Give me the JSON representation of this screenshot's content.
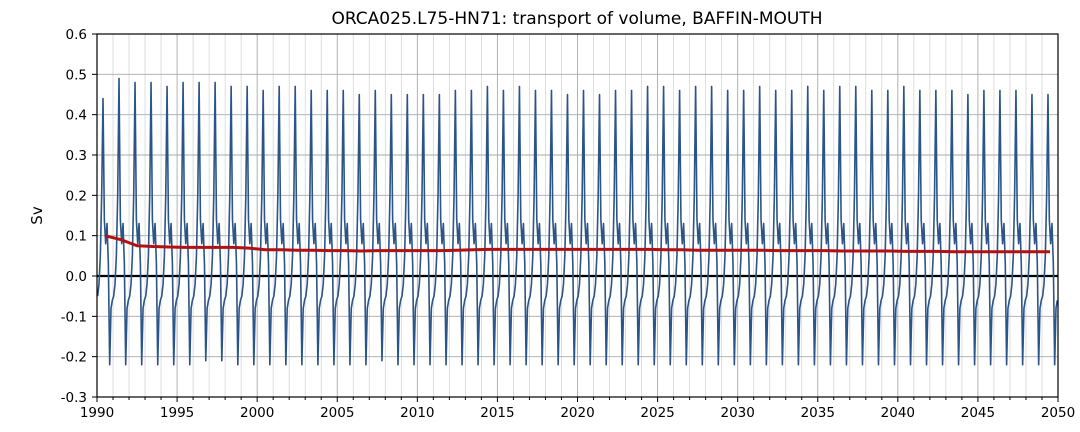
{
  "chart_data": {
    "type": "line",
    "title": "ORCA025.L75-HN71: transport of volume, BAFFIN-MOUTH",
    "xlabel": "",
    "ylabel": "Sv",
    "xlim": [
      1990,
      2050
    ],
    "ylim": [
      -0.3,
      0.6
    ],
    "x_ticks": [
      1990,
      1995,
      2000,
      2005,
      2010,
      2015,
      2020,
      2025,
      2030,
      2035,
      2040,
      2045,
      2050
    ],
    "x_tick_labels": [
      "1990",
      "1995",
      "2000",
      "2005",
      "2010",
      "2015",
      "2020",
      "2025",
      "2030",
      "2035",
      "2040",
      "2045",
      "2050"
    ],
    "y_ticks": [
      -0.3,
      -0.2,
      -0.1,
      0.0,
      0.1,
      0.2,
      0.3,
      0.4,
      0.5,
      0.6
    ],
    "y_tick_labels": [
      "-0.3",
      "-0.2",
      "-0.1",
      "0.0",
      "0.1",
      "0.2",
      "0.3",
      "0.4",
      "0.5",
      "0.6"
    ],
    "grid": true,
    "minor_x_grid_step_years": 1,
    "zero_line": true,
    "colors": {
      "monthly": "#2b5489",
      "annual_mean": "#b01111",
      "zero_line": "#000000",
      "grid_major": "#aaaaaa",
      "grid_minor": "#d6d6d6"
    },
    "monthly_series": {
      "description_of_cycle": "seasonal cycle repeated every year with slight amplitude variation",
      "monthly_climatology": [
        -0.05,
        -0.02,
        0.05,
        0.2,
        0.45,
        0.14,
        0.08,
        0.13,
        0.03,
        -0.22,
        -0.08,
        -0.06
      ],
      "annual_peak": [
        0.44,
        0.49,
        0.48,
        0.48,
        0.47,
        0.48,
        0.48,
        0.48,
        0.47,
        0.47,
        0.46,
        0.47,
        0.47,
        0.46,
        0.46,
        0.46,
        0.45,
        0.46,
        0.45,
        0.45,
        0.45,
        0.45,
        0.46,
        0.46,
        0.47,
        0.46,
        0.47,
        0.46,
        0.46,
        0.45,
        0.46,
        0.45,
        0.46,
        0.46,
        0.47,
        0.47,
        0.46,
        0.47,
        0.47,
        0.46,
        0.46,
        0.47,
        0.46,
        0.46,
        0.47,
        0.46,
        0.47,
        0.47,
        0.46,
        0.46,
        0.47,
        0.46,
        0.46,
        0.46,
        0.45,
        0.46,
        0.46,
        0.46,
        0.45,
        0.45
      ],
      "annual_trough": [
        -0.22,
        -0.22,
        -0.22,
        -0.22,
        -0.22,
        -0.22,
        -0.21,
        -0.21,
        -0.22,
        -0.22,
        -0.22,
        -0.22,
        -0.22,
        -0.22,
        -0.22,
        -0.22,
        -0.22,
        -0.21,
        -0.22,
        -0.22,
        -0.22,
        -0.22,
        -0.22,
        -0.22,
        -0.22,
        -0.22,
        -0.22,
        -0.22,
        -0.22,
        -0.22,
        -0.22,
        -0.22,
        -0.22,
        -0.22,
        -0.22,
        -0.22,
        -0.22,
        -0.22,
        -0.22,
        -0.22,
        -0.22,
        -0.22,
        -0.22,
        -0.22,
        -0.22,
        -0.22,
        -0.22,
        -0.22,
        -0.22,
        -0.22,
        -0.22,
        -0.22,
        -0.22,
        -0.22,
        -0.22,
        -0.22,
        -0.22,
        -0.22,
        -0.22,
        -0.22
      ]
    },
    "annual_mean_series": {
      "x": [
        1990.5,
        1991.5,
        1992.5,
        1993.5,
        1994.5,
        1995.5,
        1996.5,
        1997.5,
        1998.5,
        1999.5,
        2000.5,
        2001.5,
        2002.5,
        2003.5,
        2004.5,
        2005.5,
        2006.5,
        2007.5,
        2008.5,
        2009.5,
        2010.5,
        2011.5,
        2012.5,
        2013.5,
        2014.5,
        2015.5,
        2016.5,
        2017.5,
        2018.5,
        2019.5,
        2020.5,
        2021.5,
        2022.5,
        2023.5,
        2024.5,
        2025.5,
        2026.5,
        2027.5,
        2028.5,
        2029.5,
        2030.5,
        2031.5,
        2032.5,
        2033.5,
        2034.5,
        2035.5,
        2036.5,
        2037.5,
        2038.5,
        2039.5,
        2040.5,
        2041.5,
        2042.5,
        2043.5,
        2044.5,
        2045.5,
        2046.5,
        2047.5,
        2048.5,
        2049.5
      ],
      "y": [
        0.1,
        0.09,
        0.075,
        0.073,
        0.072,
        0.071,
        0.071,
        0.071,
        0.071,
        0.069,
        0.065,
        0.065,
        0.064,
        0.064,
        0.063,
        0.063,
        0.062,
        0.063,
        0.063,
        0.063,
        0.063,
        0.063,
        0.064,
        0.065,
        0.066,
        0.066,
        0.066,
        0.066,
        0.066,
        0.066,
        0.066,
        0.066,
        0.066,
        0.066,
        0.066,
        0.065,
        0.065,
        0.064,
        0.064,
        0.064,
        0.064,
        0.064,
        0.063,
        0.063,
        0.063,
        0.063,
        0.062,
        0.062,
        0.062,
        0.062,
        0.061,
        0.061,
        0.061,
        0.06,
        0.06,
        0.06,
        0.06,
        0.06,
        0.06,
        0.06
      ]
    }
  }
}
